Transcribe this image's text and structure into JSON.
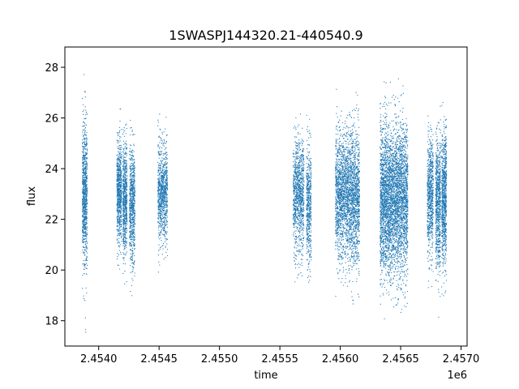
{
  "chart_data": {
    "type": "scatter",
    "title": "1SWASPJ144320.21-440540.9",
    "xlabel": "time",
    "ylabel": "flux",
    "x_offset_label": "1e6",
    "xlim": [
      2453720,
      2457050
    ],
    "ylim": [
      17.0,
      28.8
    ],
    "x_ticks": [
      2.454,
      2.4545,
      2.455,
      2.4555,
      2.456,
      2.4565,
      2.457
    ],
    "x_tick_labels": [
      "2.4540",
      "2.4545",
      "2.4550",
      "2.4555",
      "2.4560",
      "2.4565",
      "2.4570"
    ],
    "y_ticks": [
      18,
      20,
      22,
      24,
      26,
      28
    ],
    "y_tick_labels": [
      "18",
      "20",
      "22",
      "24",
      "26",
      "28"
    ],
    "grid": false,
    "marker_color": "#1f77b4",
    "segments": [
      {
        "x_start": 2453865,
        "x_end": 2453905,
        "center": 23.0,
        "spread": 1.35,
        "n": 900
      },
      {
        "x_start": 2454150,
        "x_end": 2454190,
        "center": 23.1,
        "spread": 1.05,
        "n": 700
      },
      {
        "x_start": 2454200,
        "x_end": 2454235,
        "center": 22.8,
        "spread": 1.1,
        "n": 650
      },
      {
        "x_start": 2454255,
        "x_end": 2454300,
        "center": 22.6,
        "spread": 1.15,
        "n": 700
      },
      {
        "x_start": 2454490,
        "x_end": 2454570,
        "center": 23.0,
        "spread": 1.0,
        "n": 900
      },
      {
        "x_start": 2455610,
        "x_end": 2455700,
        "center": 23.0,
        "spread": 1.05,
        "n": 1000
      },
      {
        "x_start": 2455720,
        "x_end": 2455760,
        "center": 22.6,
        "spread": 1.15,
        "n": 500
      },
      {
        "x_start": 2455960,
        "x_end": 2456080,
        "center": 23.0,
        "spread": 1.25,
        "n": 1500
      },
      {
        "x_start": 2456080,
        "x_end": 2456160,
        "center": 22.9,
        "spread": 1.35,
        "n": 1100
      },
      {
        "x_start": 2456330,
        "x_end": 2456420,
        "center": 22.8,
        "spread": 1.45,
        "n": 1600
      },
      {
        "x_start": 2456420,
        "x_end": 2456560,
        "center": 22.8,
        "spread": 1.45,
        "n": 2200
      },
      {
        "x_start": 2456720,
        "x_end": 2456770,
        "center": 22.9,
        "spread": 1.15,
        "n": 700
      },
      {
        "x_start": 2456790,
        "x_end": 2456830,
        "center": 22.7,
        "spread": 1.25,
        "n": 700
      },
      {
        "x_start": 2456840,
        "x_end": 2456880,
        "center": 22.8,
        "spread": 1.3,
        "n": 800
      }
    ]
  }
}
